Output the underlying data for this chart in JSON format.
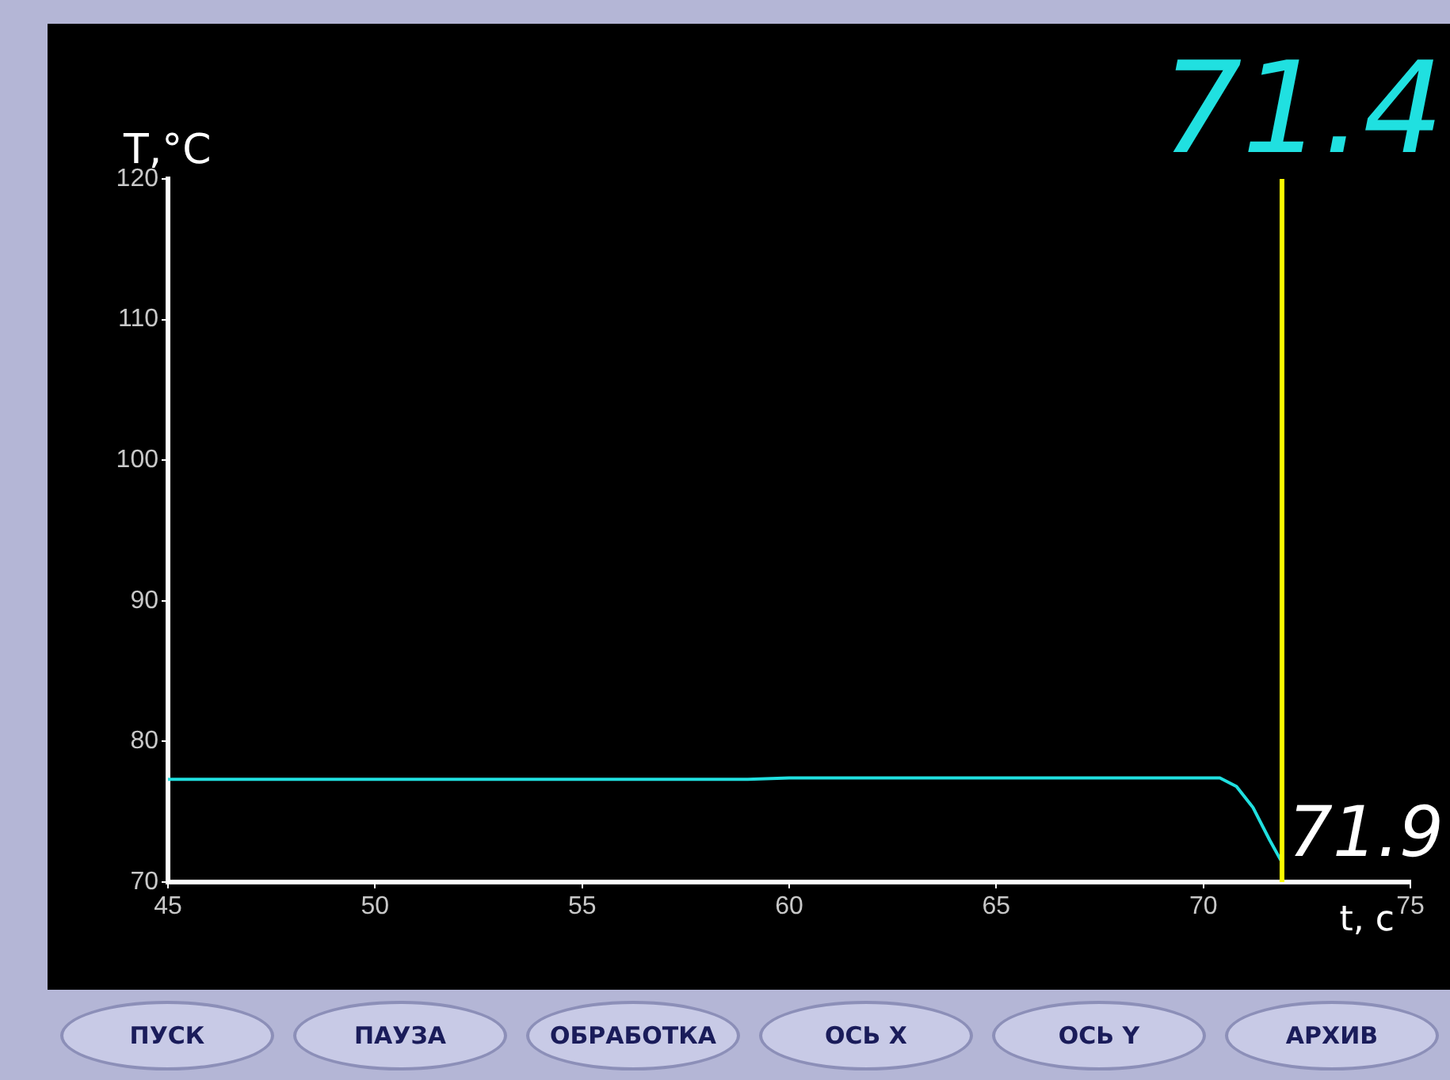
{
  "chart_data": {
    "type": "line",
    "xlabel": "t, c",
    "ylabel": "T,°C",
    "x": [
      45,
      46,
      47,
      48,
      49,
      50,
      51,
      52,
      53,
      54,
      55,
      56,
      57,
      58,
      59,
      60,
      61,
      62,
      63,
      64,
      65,
      66,
      67,
      68,
      69,
      70,
      70.4,
      70.8,
      71.2,
      71.6,
      71.9
    ],
    "series": [
      {
        "color": "#20e0e0",
        "values": [
          77.3,
          77.3,
          77.3,
          77.3,
          77.3,
          77.3,
          77.3,
          77.3,
          77.3,
          77.3,
          77.3,
          77.3,
          77.3,
          77.3,
          77.3,
          77.4,
          77.4,
          77.4,
          77.4,
          77.4,
          77.4,
          77.4,
          77.4,
          77.4,
          77.4,
          77.4,
          77.4,
          76.8,
          75.3,
          73.0,
          71.4
        ]
      }
    ],
    "xlim": [
      45,
      75
    ],
    "xticks": [
      45,
      50,
      55,
      60,
      65,
      70,
      75
    ],
    "ylim": [
      70,
      120
    ],
    "yticks": [
      70,
      80,
      90,
      100,
      110,
      120
    ],
    "ref_lines": [
      {
        "axis": "x",
        "value": 71.9,
        "label": "71.9",
        "color": "#ffff00"
      }
    ],
    "annotations": [
      "71.4",
      "ПУСК",
      "ПАУЗА",
      "ОБРАБОТКА",
      "ОСЬ X",
      "ОСЬ Y",
      "АРХИВ"
    ],
    "legend": false
  }
}
